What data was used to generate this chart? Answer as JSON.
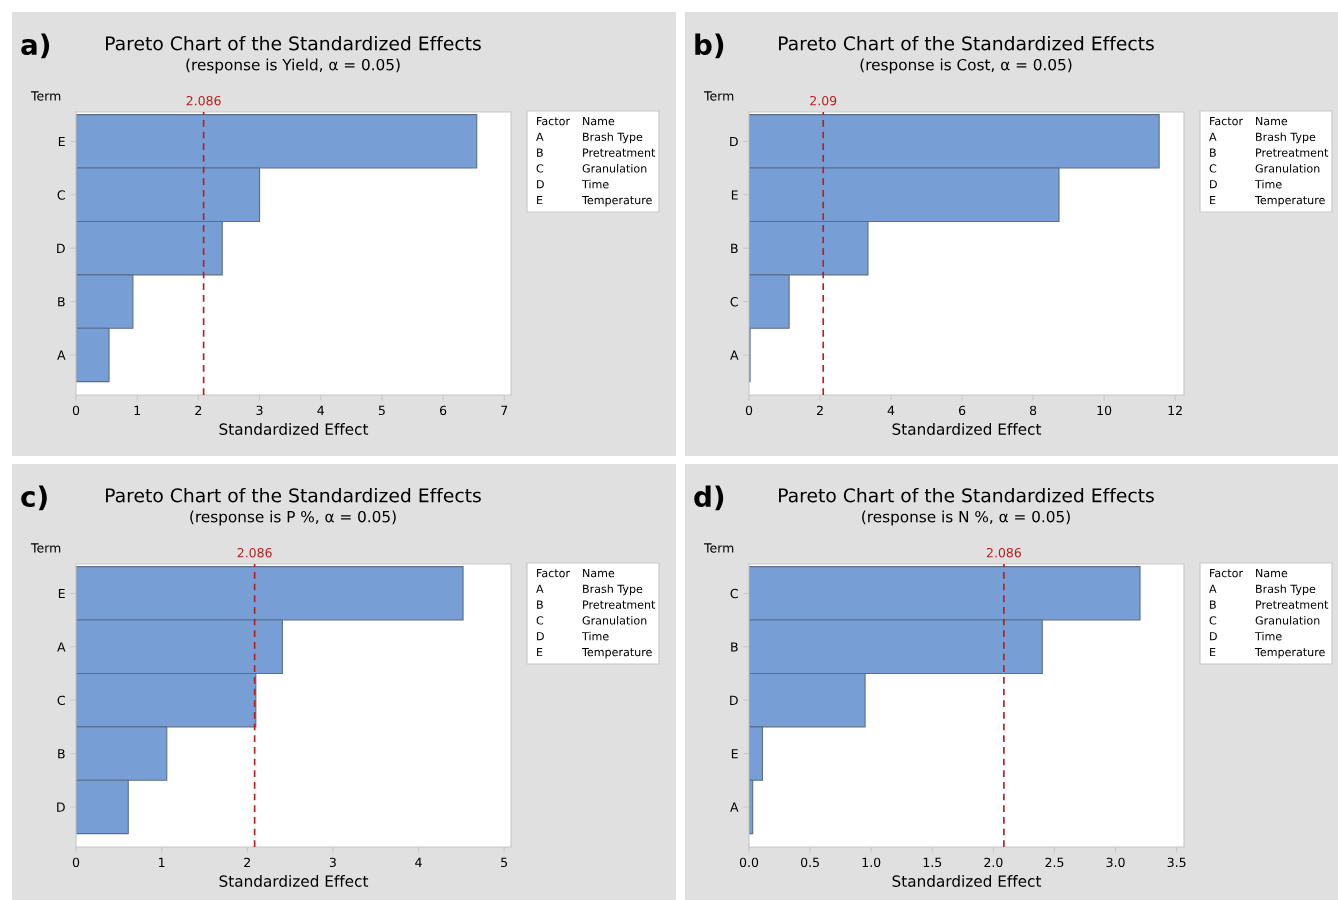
{
  "chart_data": [
    {
      "type": "bar",
      "orientation": "horizontal",
      "title": "Pareto Chart of the Standardized Effects",
      "subtitle": "(response is Yield, α = 0.05)",
      "xlabel": "Standardized Effect",
      "ylabel": "Term",
      "categories": [
        "E",
        "C",
        "D",
        "B",
        "A"
      ],
      "values": [
        6.55,
        3.0,
        2.39,
        0.93,
        0.54
      ],
      "color": "#779fd5",
      "xlim": [
        0,
        7.11
      ],
      "xticks": [
        0,
        1,
        2,
        3,
        4,
        5,
        6,
        7
      ],
      "ref_lines": [
        {
          "axis": "x",
          "value": 2.086,
          "label": "2.086",
          "color": "#b22222",
          "line_style": "dashed"
        }
      ],
      "annotations": [
        "a)",
        "Factor",
        "Name",
        "A",
        "Brash Type",
        "B",
        "Pretreatment",
        "C",
        "Granulation",
        "D",
        "Time",
        "E",
        "Temperature"
      ],
      "grid": false,
      "legend": false
    },
    {
      "type": "bar",
      "orientation": "horizontal",
      "title": "Pareto Chart of the Standardized Effects",
      "subtitle": "(response is Cost, α = 0.05)",
      "xlabel": "Standardized Effect",
      "ylabel": "Term",
      "categories": [
        "D",
        "E",
        "B",
        "C",
        "A"
      ],
      "values": [
        11.55,
        8.73,
        3.35,
        1.13,
        0.03
      ],
      "color": "#779fd5",
      "xlim": [
        0,
        12.25
      ],
      "xticks": [
        0,
        2,
        4,
        6,
        8,
        10,
        12
      ],
      "ref_lines": [
        {
          "axis": "x",
          "value": 2.09,
          "label": "2.09",
          "color": "#b22222",
          "line_style": "dashed"
        }
      ],
      "annotations": [
        "b)",
        "Factor",
        "Name",
        "A",
        "Brash Type",
        "B",
        "Pretreatment",
        "C",
        "Granulation",
        "D",
        "Time",
        "E",
        "Temperature"
      ],
      "grid": false,
      "legend": false
    },
    {
      "type": "bar",
      "orientation": "horizontal",
      "title": "Pareto Chart of the Standardized Effects",
      "subtitle": "(response is P %, α = 0.05)",
      "xlabel": "Standardized Effect",
      "ylabel": "Term",
      "categories": [
        "E",
        "A",
        "C",
        "B",
        "D"
      ],
      "values": [
        4.52,
        2.41,
        2.1,
        1.06,
        0.61
      ],
      "color": "#779fd5",
      "xlim": [
        0,
        5.08
      ],
      "xticks": [
        0,
        1,
        2,
        3,
        4,
        5
      ],
      "ref_lines": [
        {
          "axis": "x",
          "value": 2.086,
          "label": "2.086",
          "color": "#b22222",
          "line_style": "dashed"
        }
      ],
      "annotations": [
        "c)",
        "Factor",
        "Name",
        "A",
        "Brash Type",
        "B",
        "Pretreatment",
        "C",
        "Granulation",
        "D",
        "Time",
        "E",
        "Temperature"
      ],
      "grid": false,
      "legend": false
    },
    {
      "type": "bar",
      "orientation": "horizontal",
      "title": "Pareto Chart of the Standardized Effects",
      "subtitle": "(response is N %, α = 0.05)",
      "xlabel": "Standardized Effect",
      "ylabel": "Term",
      "categories": [
        "C",
        "B",
        "D",
        "E",
        "A"
      ],
      "values": [
        3.2,
        2.4,
        0.95,
        0.11,
        0.03
      ],
      "color": "#779fd5",
      "xlim": [
        0,
        3.56
      ],
      "xticks": [
        {
          "value": 0,
          "label": "0.0"
        },
        {
          "value": 0.5,
          "label": "0.5"
        },
        {
          "value": 1,
          "label": "1.0"
        },
        {
          "value": 1.5,
          "label": "1.5"
        },
        {
          "value": 2,
          "label": "2.0"
        },
        {
          "value": 2.5,
          "label": "2.5"
        },
        {
          "value": 3,
          "label": "3.0"
        },
        {
          "value": 3.5,
          "label": "3.5"
        }
      ],
      "ref_lines": [
        {
          "axis": "x",
          "value": 2.086,
          "label": "2.086",
          "color": "#b22222",
          "line_style": "dashed"
        }
      ],
      "annotations": [
        "d)",
        "Factor",
        "Name",
        "A",
        "Brash Type",
        "B",
        "Pretreatment",
        "C",
        "Granulation",
        "D",
        "Time",
        "E",
        "Temperature"
      ],
      "grid": false,
      "legend": false
    }
  ]
}
